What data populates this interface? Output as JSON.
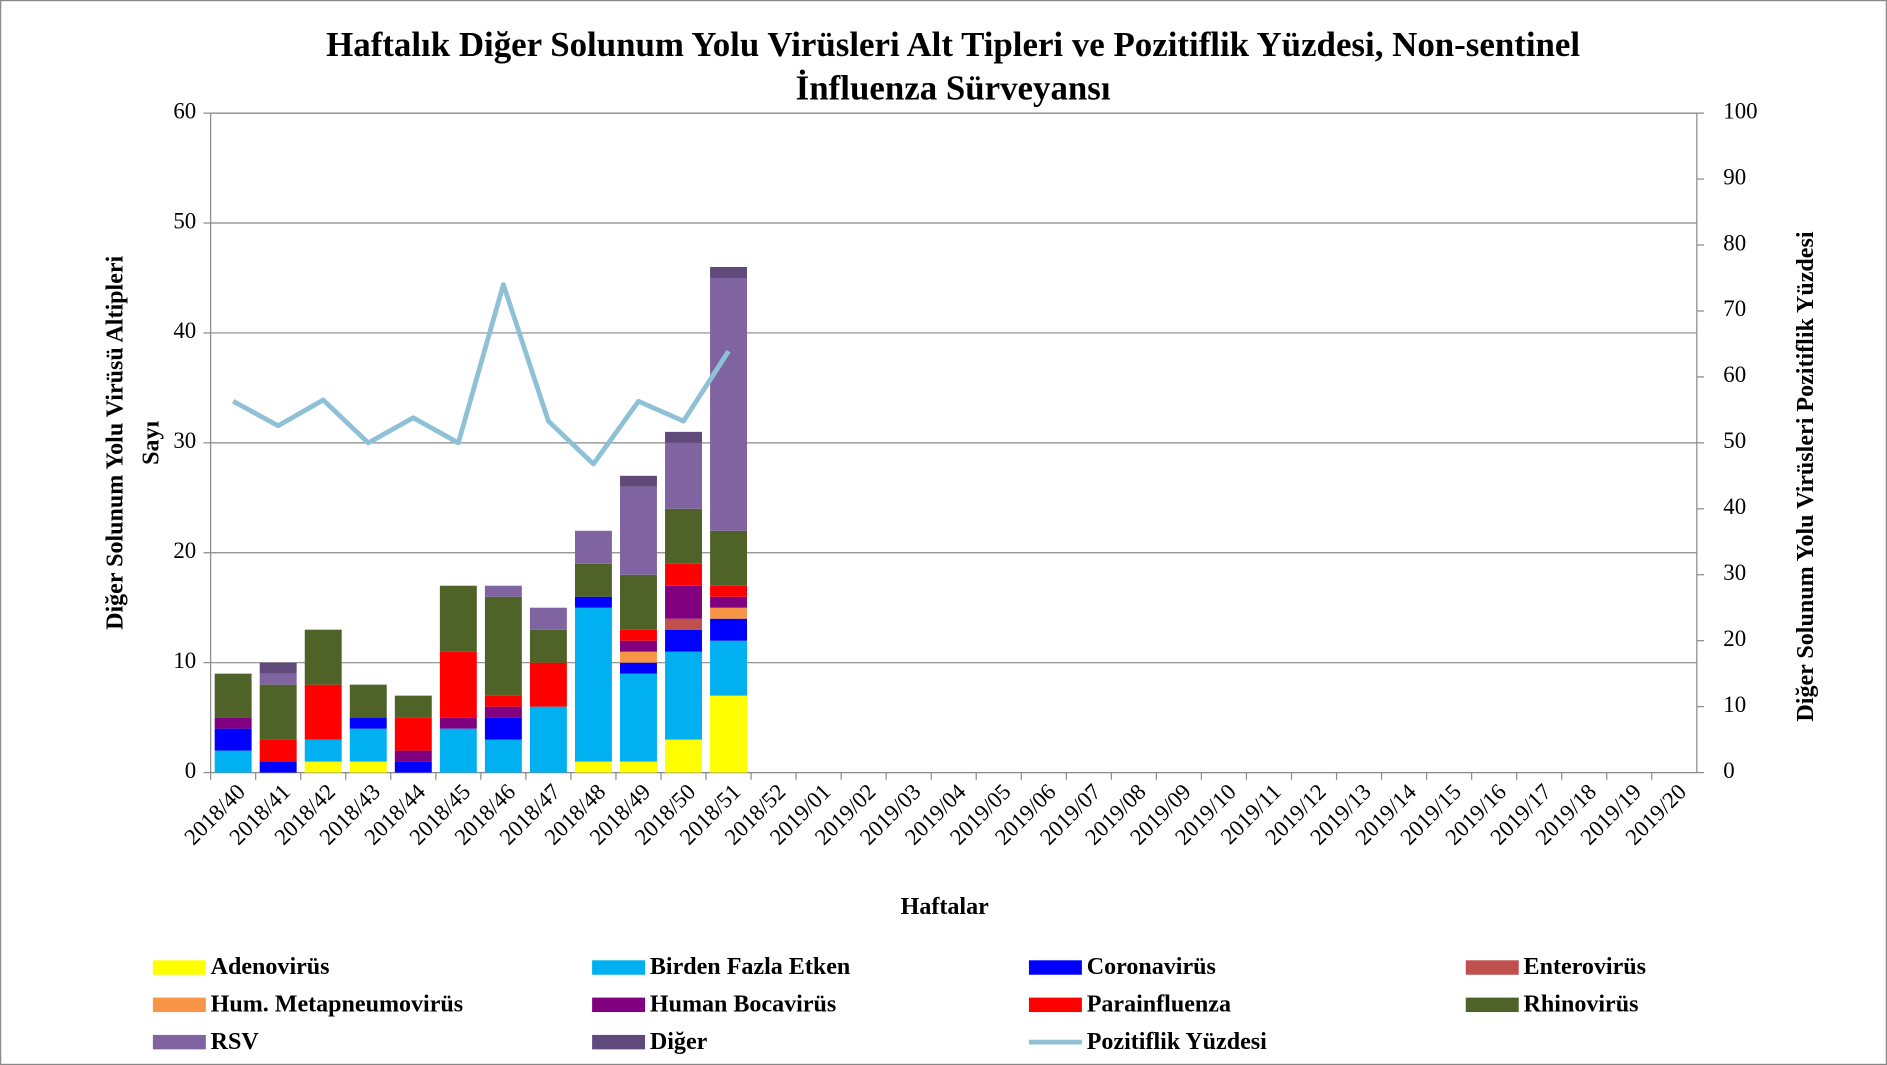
{
  "chart_data": {
    "type": "bar",
    "stacked": true,
    "title": [
      "Haftalık Diğer Solunum Yolu Virüsleri Alt Tipleri ve Pozitiflik Yüzdesi, Non-sentinel",
      "İnfluenza Sürveyansı"
    ],
    "ylabel": [
      "Diğer Solunum Yolu Virüsü Altipleri",
      "Sayı"
    ],
    "y2label": "Diğer Solunum Yolu Virüsleri Pozitiflik Yüzdesi",
    "xlabel": "Haftalar",
    "categories": [
      "2018/40",
      "2018/41",
      "2018/42",
      "2018/43",
      "2018/44",
      "2018/45",
      "2018/46",
      "2018/47",
      "2018/48",
      "2018/49",
      "2018/50",
      "2018/51",
      "2018/52",
      "2019/01",
      "2019/02",
      "2019/03",
      "2019/04",
      "2019/05",
      "2019/06",
      "2019/07",
      "2019/08",
      "2019/09",
      "2019/10",
      "2019/11",
      "2019/12",
      "2019/13",
      "2019/14",
      "2019/15",
      "2019/16",
      "2019/17",
      "2019/18",
      "2019/19",
      "2019/20"
    ],
    "ylim": [
      0,
      60
    ],
    "yticks": [
      0,
      10,
      20,
      30,
      40,
      50,
      60
    ],
    "y2lim": [
      0,
      100
    ],
    "y2ticks": [
      0,
      10,
      20,
      30,
      40,
      50,
      60,
      70,
      80,
      90,
      100
    ],
    "grid": true,
    "legend": "bottom",
    "series": [
      {
        "name": "Adenovirüs",
        "color": "#ffff00",
        "values": [
          0,
          0,
          1,
          1,
          0,
          0,
          0,
          0,
          1,
          1,
          3,
          7,
          null,
          null,
          null,
          null,
          null,
          null,
          null,
          null,
          null,
          null,
          null,
          null,
          null,
          null,
          null,
          null,
          null,
          null,
          null,
          null,
          null
        ]
      },
      {
        "name": "Birden Fazla Etken",
        "color": "#00b0f0",
        "values": [
          2,
          0,
          2,
          3,
          0,
          4,
          3,
          6,
          14,
          8,
          8,
          5,
          null,
          null,
          null,
          null,
          null,
          null,
          null,
          null,
          null,
          null,
          null,
          null,
          null,
          null,
          null,
          null,
          null,
          null,
          null,
          null,
          null
        ]
      },
      {
        "name": "Coronavirüs",
        "color": "#0000ff",
        "values": [
          2,
          1,
          0,
          1,
          1,
          0,
          2,
          0,
          1,
          1,
          2,
          2,
          null,
          null,
          null,
          null,
          null,
          null,
          null,
          null,
          null,
          null,
          null,
          null,
          null,
          null,
          null,
          null,
          null,
          null,
          null,
          null,
          null
        ]
      },
      {
        "name": "Enterovirüs",
        "color": "#c0504d",
        "values": [
          0,
          0,
          0,
          0,
          0,
          0,
          0,
          0,
          0,
          0,
          1,
          0,
          null,
          null,
          null,
          null,
          null,
          null,
          null,
          null,
          null,
          null,
          null,
          null,
          null,
          null,
          null,
          null,
          null,
          null,
          null,
          null,
          null
        ]
      },
      {
        "name": "Hum. Metapneumovirüs",
        "color": "#f79646",
        "values": [
          0,
          0,
          0,
          0,
          0,
          0,
          0,
          0,
          0,
          1,
          0,
          1,
          null,
          null,
          null,
          null,
          null,
          null,
          null,
          null,
          null,
          null,
          null,
          null,
          null,
          null,
          null,
          null,
          null,
          null,
          null,
          null,
          null
        ]
      },
      {
        "name": "Human Bocavirüs",
        "color": "#800080",
        "values": [
          1,
          0,
          0,
          0,
          1,
          1,
          1,
          0,
          0,
          1,
          3,
          1,
          null,
          null,
          null,
          null,
          null,
          null,
          null,
          null,
          null,
          null,
          null,
          null,
          null,
          null,
          null,
          null,
          null,
          null,
          null,
          null,
          null
        ]
      },
      {
        "name": "Parainfluenza",
        "color": "#ff0000",
        "values": [
          0,
          2,
          5,
          0,
          3,
          6,
          1,
          4,
          0,
          1,
          2,
          1,
          null,
          null,
          null,
          null,
          null,
          null,
          null,
          null,
          null,
          null,
          null,
          null,
          null,
          null,
          null,
          null,
          null,
          null,
          null,
          null,
          null
        ]
      },
      {
        "name": "Rhinovirüs",
        "color": "#4f6228",
        "values": [
          4,
          5,
          5,
          3,
          2,
          6,
          9,
          3,
          3,
          5,
          5,
          5,
          null,
          null,
          null,
          null,
          null,
          null,
          null,
          null,
          null,
          null,
          null,
          null,
          null,
          null,
          null,
          null,
          null,
          null,
          null,
          null,
          null
        ]
      },
      {
        "name": "RSV",
        "color": "#8064a2",
        "values": [
          0,
          1,
          0,
          0,
          0,
          0,
          1,
          2,
          3,
          8,
          6,
          23,
          null,
          null,
          null,
          null,
          null,
          null,
          null,
          null,
          null,
          null,
          null,
          null,
          null,
          null,
          null,
          null,
          null,
          null,
          null,
          null,
          null
        ]
      },
      {
        "name": "Diğer",
        "color": "#604a7b",
        "values": [
          0,
          1,
          0,
          0,
          0,
          0,
          0,
          0,
          0,
          1,
          1,
          1,
          null,
          null,
          null,
          null,
          null,
          null,
          null,
          null,
          null,
          null,
          null,
          null,
          null,
          null,
          null,
          null,
          null,
          null,
          null,
          null,
          null
        ]
      },
      {
        "name": "Pozitiflik Yüzdesi",
        "color": "#8fc1d6",
        "type": "line",
        "axis": "y2",
        "values": [
          56.3,
          52.6,
          56.5,
          50,
          53.8,
          50,
          74,
          53.3,
          46.8,
          56.3,
          53.3,
          63.9,
          null,
          null,
          null,
          null,
          null,
          null,
          null,
          null,
          null,
          null,
          null,
          null,
          null,
          null,
          null,
          null,
          null,
          null,
          null,
          null,
          null
        ]
      }
    ]
  }
}
